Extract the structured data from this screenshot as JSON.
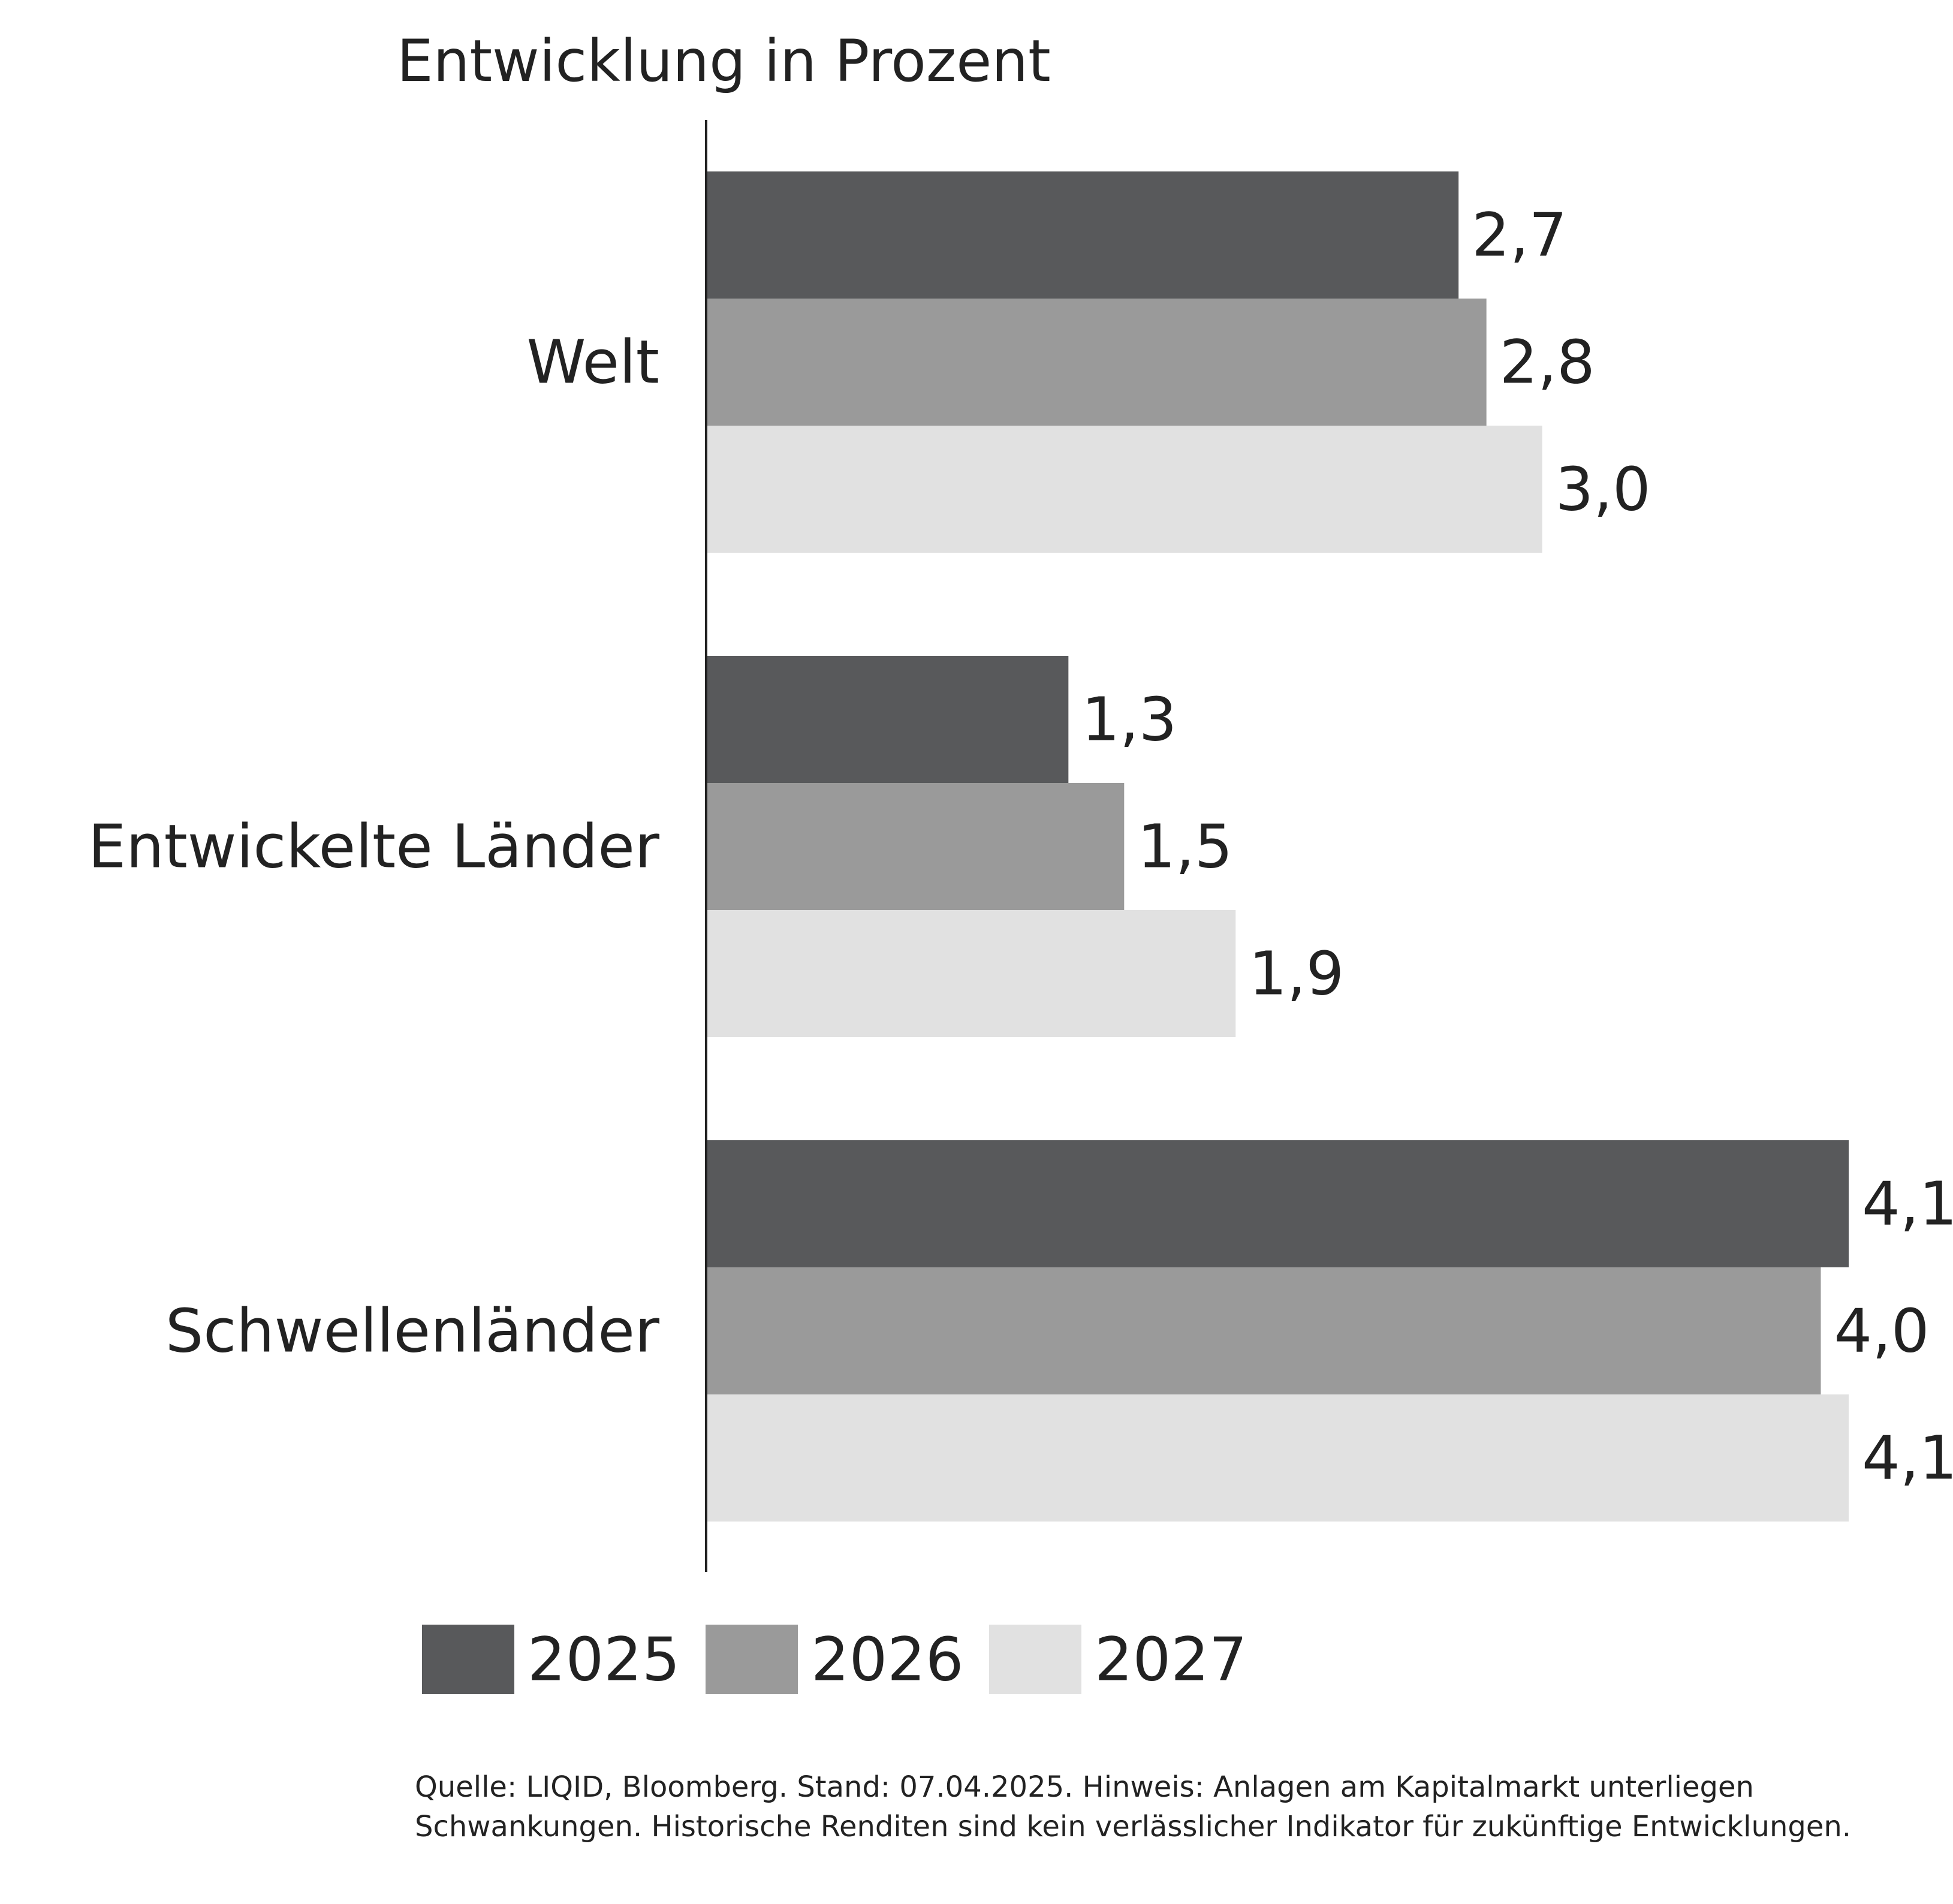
{
  "chart_data": {
    "type": "bar",
    "orientation": "horizontal",
    "title": "Entwicklung in Prozent",
    "categories": [
      "Welt",
      "Entwickelte Länder",
      "Schwellenländer"
    ],
    "series": [
      {
        "name": "2025",
        "color": "#58595b",
        "values": [
          2.7,
          1.3,
          4.1
        ],
        "labels": [
          "2,7",
          "1,3",
          "4,1"
        ]
      },
      {
        "name": "2026",
        "color": "#9a9a9a",
        "values": [
          2.8,
          1.5,
          4.0
        ],
        "labels": [
          "2,8",
          "1,5",
          "4,0"
        ]
      },
      {
        "name": "2027",
        "color": "#e1e1e1",
        "values": [
          3.0,
          1.9,
          4.1
        ],
        "labels": [
          "3,0",
          "1,9",
          "4,1"
        ]
      }
    ],
    "xlim": [
      0,
      4.1
    ],
    "grid": false,
    "legend_position": "bottom"
  },
  "footnote": "Quelle: LIQID, Bloomberg. Stand: 07.04.2025. Hinweis: Anlagen am Kapitalmarkt unterliegen Schwankungen. Historische Renditen sind kein verlässlicher Indikator für zukünftige Entwicklungen."
}
